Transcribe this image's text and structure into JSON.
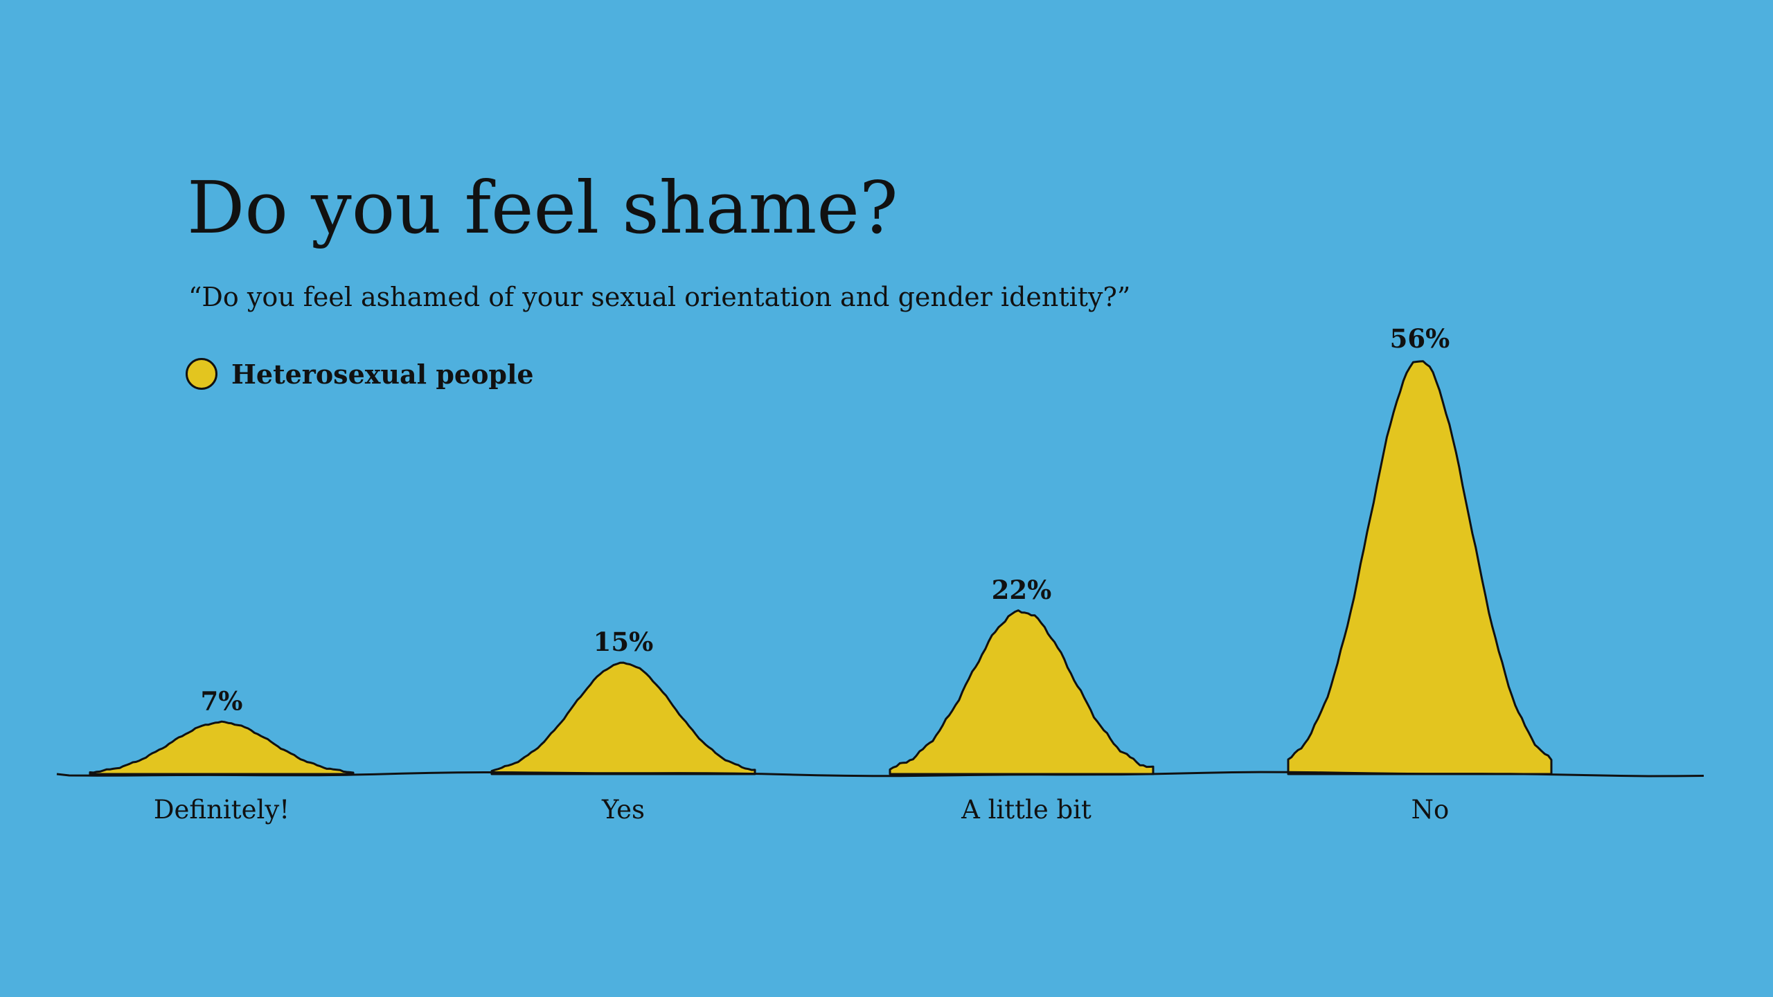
{
  "chart_data": {
    "type": "area",
    "title": "Do you feel shame?",
    "subtitle": "“Do you feel ashamed of your sexual orientation and gender identity?”",
    "categories": [
      "Definitely!",
      "Yes",
      "A little bit",
      "No"
    ],
    "series": [
      {
        "name": "Heterosexual people",
        "values": [
          7,
          15,
          22,
          56
        ],
        "value_labels": [
          "7%",
          "15%",
          "22%",
          "56%"
        ]
      }
    ],
    "ylim": [
      0,
      56
    ],
    "grid": false,
    "legend": "top-left"
  },
  "colors": {
    "background": "#4fb0de",
    "series_fill": "#e3c51f",
    "stroke": "#111111"
  }
}
